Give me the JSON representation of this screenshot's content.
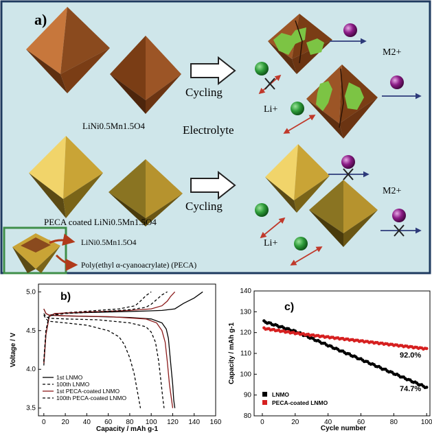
{
  "panel_a": {
    "label": "a)",
    "top": {
      "material": "LiNi0.5Mn1.5O4",
      "process": "Cycling",
      "ion_li": "Li+",
      "ion_m": "M2+",
      "medium": "Electrolyte"
    },
    "bottom": {
      "material": "PECA coated LiNi0.5Mn1.5O4",
      "process": "Cycling",
      "ion_li": "Li+",
      "ion_m": "M2+"
    },
    "inset": {
      "core_label": "LiNi0.5Mn1.5O4",
      "coating_label": "Poly(ethyl α-cyanoacrylate) (PECA)"
    },
    "colors": {
      "background": "#cfe6ea",
      "uncoated": "#8a4a1e",
      "coated": "#c9a436",
      "degradation": "#7cc444",
      "li_ion": "#2e9c3a",
      "m_ion": "#8b1b86",
      "li_arrow": "#c0392b",
      "m_arrow": "#2d3a7a"
    }
  },
  "chart_data": [
    {
      "id": "b",
      "type": "line",
      "panel_label": "b)",
      "xlabel": "Capacity / mAh g-1",
      "ylabel": "Voltage / V",
      "xlim": [
        -5,
        160
      ],
      "ylim": [
        3.4,
        5.1
      ],
      "xticks": [
        "0",
        "20",
        "40",
        "60",
        "80",
        "100",
        "120",
        "140",
        "160"
      ],
      "yticks": [
        "3.5",
        "4.0",
        "4.5",
        "5.0"
      ],
      "legend_position": "bottom-left",
      "series": [
        {
          "name": "1st LNMO",
          "color": "#000000",
          "dash": false,
          "charge": {
            "x": [
              0,
              2,
              5,
              10,
              30,
              60,
              90,
              110,
              122,
              130,
              140,
              148
            ],
            "y": [
              4.05,
              4.45,
              4.68,
              4.72,
              4.73,
              4.74,
              4.75,
              4.76,
              4.78,
              4.85,
              4.92,
              5.0
            ]
          },
          "discharge": {
            "x": [
              0,
              2,
              5,
              20,
              50,
              80,
              100,
              110,
              114,
              116,
              118,
              120,
              121,
              122
            ],
            "y": [
              4.78,
              4.72,
              4.7,
              4.69,
              4.68,
              4.67,
              4.65,
              4.6,
              4.52,
              4.4,
              4.1,
              3.8,
              3.6,
              3.5
            ]
          }
        },
        {
          "name": "100th LNMO",
          "color": "#000000",
          "dash": true,
          "charge": {
            "x": [
              0,
              2,
              5,
              20,
              50,
              70,
              85,
              90,
              95,
              100
            ],
            "y": [
              4.1,
              4.5,
              4.7,
              4.73,
              4.76,
              4.78,
              4.82,
              4.88,
              4.95,
              5.0
            ]
          },
          "discharge": {
            "x": [
              0,
              2,
              5,
              20,
              40,
              60,
              70,
              75,
              80,
              84,
              86,
              88,
              90
            ],
            "y": [
              4.7,
              4.65,
              4.62,
              4.6,
              4.57,
              4.5,
              4.42,
              4.32,
              4.15,
              3.95,
              3.8,
              3.65,
              3.5
            ]
          }
        },
        {
          "name": "1st PECA-coated LNMO",
          "color": "#8b1a1a",
          "dash": false,
          "charge": {
            "x": [
              0,
              2,
              5,
              10,
              40,
              80,
              100,
              110,
              115,
              118,
              122
            ],
            "y": [
              4.08,
              4.45,
              4.68,
              4.72,
              4.74,
              4.76,
              4.78,
              4.82,
              4.88,
              4.94,
              5.0
            ]
          },
          "discharge": {
            "x": [
              0,
              2,
              5,
              20,
              60,
              95,
              105,
              110,
              113,
              115,
              117,
              119,
              120
            ],
            "y": [
              4.78,
              4.72,
              4.7,
              4.69,
              4.68,
              4.65,
              4.6,
              4.5,
              4.35,
              4.1,
              3.8,
              3.6,
              3.5
            ]
          }
        },
        {
          "name": "100th PECA-coated LNMO",
          "color": "#000000",
          "dash": true,
          "charge": {
            "x": [
              0,
              2,
              5,
              20,
              50,
              80,
              95,
              100,
              105,
              110,
              115
            ],
            "y": [
              4.1,
              4.5,
              4.69,
              4.72,
              4.74,
              4.77,
              4.8,
              4.84,
              4.9,
              4.96,
              5.0
            ]
          },
          "discharge": {
            "x": [
              0,
              2,
              5,
              20,
              50,
              80,
              95,
              100,
              104,
              107,
              109,
              111,
              112
            ],
            "y": [
              4.72,
              4.68,
              4.66,
              4.65,
              4.64,
              4.6,
              4.55,
              4.48,
              4.35,
              4.1,
              3.85,
              3.6,
              3.5
            ]
          }
        }
      ]
    },
    {
      "id": "c",
      "type": "scatter",
      "panel_label": "c)",
      "xlabel": "Cycle number",
      "ylabel": "Capacity / mAh g-1",
      "xlim": [
        -5,
        102
      ],
      "ylim": [
        80,
        140
      ],
      "xticks": [
        "0",
        "20",
        "40",
        "60",
        "80",
        "100"
      ],
      "yticks": [
        "80",
        "90",
        "100",
        "110",
        "120",
        "130",
        "140"
      ],
      "legend_position": "bottom-left",
      "annotations": [
        "92.0%",
        "74.7%"
      ],
      "series": [
        {
          "name": "LNMO",
          "color": "#000000",
          "x": [
            1,
            100
          ],
          "y": [
            125.3,
            93.6
          ]
        },
        {
          "name": "PECA-coated LNMO",
          "color": "#d62020",
          "x": [
            1,
            100
          ],
          "y": [
            122.0,
            112.2
          ]
        }
      ]
    }
  ]
}
